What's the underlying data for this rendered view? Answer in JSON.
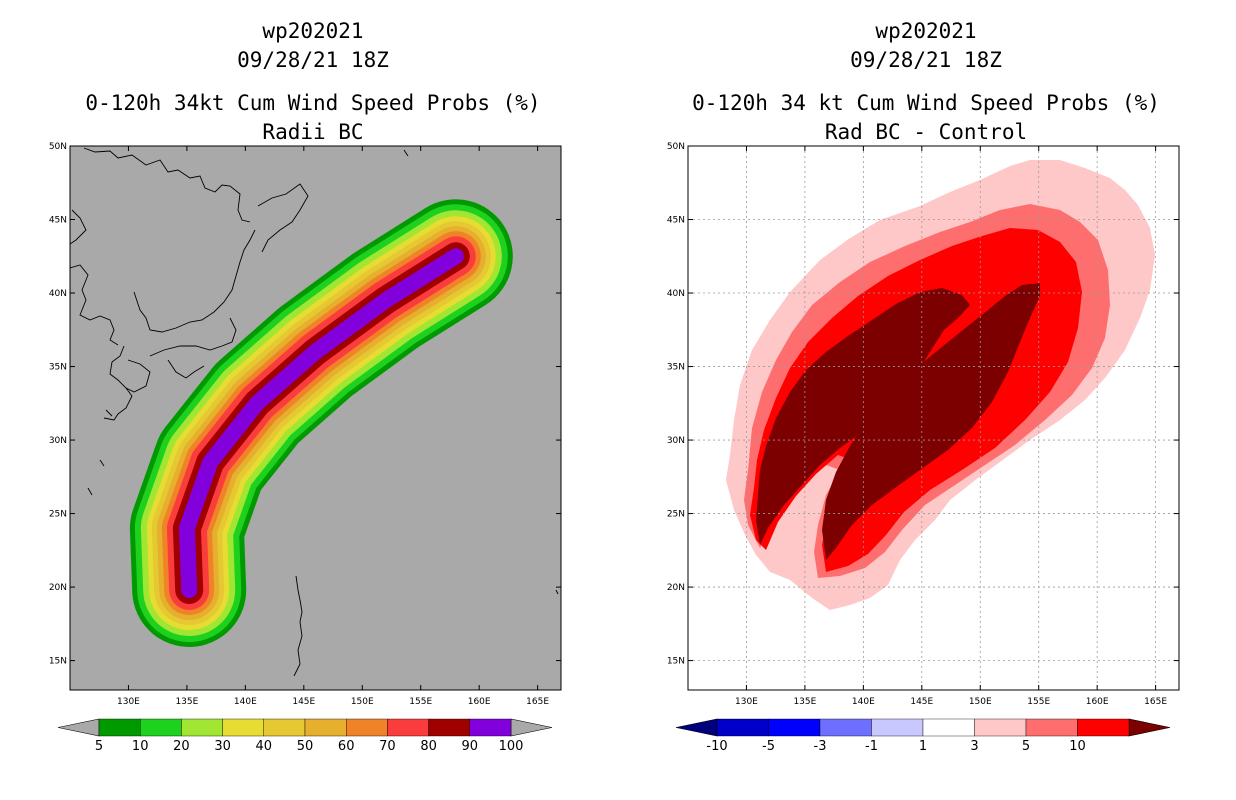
{
  "chart_data": [
    {
      "type": "heatmap",
      "title_lines": [
        "wp202021",
        "09/28/21 18Z",
        "0-120h 34kt Cum Wind Speed Probs (%)",
        "Radii BC"
      ],
      "xlabel": "",
      "ylabel": "",
      "xlim": [
        125,
        167
      ],
      "ylim": [
        13,
        50
      ],
      "x_ticks": [
        130,
        135,
        140,
        145,
        150,
        155,
        160,
        165
      ],
      "y_ticks": [
        15,
        20,
        25,
        30,
        35,
        40,
        45,
        50
      ],
      "x_tick_labels": [
        "130E",
        "135E",
        "140E",
        "145E",
        "150E",
        "155E",
        "160E",
        "165E"
      ],
      "y_tick_labels": [
        "15N",
        "20N",
        "25N",
        "30N",
        "35N",
        "40N",
        "45N",
        "50N"
      ],
      "background": "#a9a9a9",
      "grid": false,
      "colorbar": {
        "levels": [
          "5",
          "10",
          "20",
          "30",
          "40",
          "50",
          "60",
          "70",
          "80",
          "90",
          "100"
        ],
        "colors": [
          "#009a00",
          "#1fd11f",
          "#a0e632",
          "#e6dc32",
          "#e6c832",
          "#e6af2d",
          "#f08228",
          "#fa3c3c",
          "#a00000",
          "#8200dc"
        ],
        "end_arrows": "#a9a9a9"
      },
      "swath": {
        "track": [
          [
            135.2,
            19.8
          ],
          [
            135.0,
            24.0
          ],
          [
            137.0,
            28.5
          ],
          [
            141.0,
            32.5
          ],
          [
            146.0,
            36.0
          ],
          [
            152.0,
            39.5
          ],
          [
            158.0,
            42.5
          ]
        ],
        "contours": [
          {
            "level": 5,
            "color": "#009a00"
          },
          {
            "level": 10,
            "color": "#1fd11f"
          },
          {
            "level": 20,
            "color": "#a0e632"
          },
          {
            "level": 30,
            "color": "#e6dc32"
          },
          {
            "level": 40,
            "color": "#e6c832"
          },
          {
            "level": 50,
            "color": "#e6af2d"
          },
          {
            "level": 60,
            "color": "#f08228"
          },
          {
            "level": 70,
            "color": "#fa3c3c"
          },
          {
            "level": 80,
            "color": "#a00000"
          },
          {
            "level": 90,
            "color": "#8200dc"
          }
        ]
      }
    },
    {
      "type": "heatmap",
      "title_lines": [
        "wp202021",
        "09/28/21 18Z",
        "0-120h 34 kt Cum Wind Speed Probs (%)",
        "Rad BC - Control"
      ],
      "xlabel": "",
      "ylabel": "",
      "xlim": [
        125,
        167
      ],
      "ylim": [
        13,
        50
      ],
      "x_ticks": [
        130,
        135,
        140,
        145,
        150,
        155,
        160,
        165
      ],
      "y_ticks": [
        15,
        20,
        25,
        30,
        35,
        40,
        45,
        50
      ],
      "x_tick_labels": [
        "130E",
        "135E",
        "140E",
        "145E",
        "150E",
        "155E",
        "160E",
        "165E"
      ],
      "y_tick_labels": [
        "15N",
        "20N",
        "25N",
        "30N",
        "35N",
        "40N",
        "45N",
        "50N"
      ],
      "background": "#ffffff",
      "grid": true,
      "colorbar": {
        "levels": [
          "-10",
          "-5",
          "-3",
          "-1",
          "1",
          "3",
          "5",
          "10"
        ],
        "colors": [
          "#0000c8",
          "#0000ff",
          "#6e6eff",
          "#c8c8ff",
          "#ffffff",
          "#ffc8c8",
          "#ff6e6e",
          "#ff0000"
        ],
        "end_arrows": [
          "#00007d",
          "#7d0000"
        ]
      },
      "difference_bands": [
        {
          "range": "1 to 3",
          "color": "#ffc8c8"
        },
        {
          "range": "3 to 5",
          "color": "#ff6e6e"
        },
        {
          "range": "5 to 10",
          "color": "#ff0000"
        },
        {
          "range": "> 10",
          "color": "#7d0000"
        }
      ]
    }
  ]
}
